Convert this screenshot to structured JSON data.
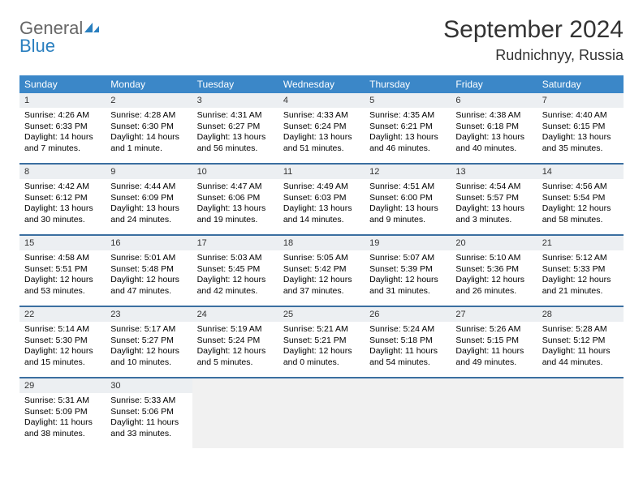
{
  "logo": {
    "text1": "General",
    "text2": "Blue"
  },
  "title": "September 2024",
  "location": "Rudnichnyy, Russia",
  "colors": {
    "header_bg": "#3b87c8",
    "header_fg": "#ffffff",
    "daynum_bg": "#eceff2",
    "week_divider": "#3b6fa0",
    "empty_bg": "#f1f1f1",
    "logo_gray": "#666666",
    "logo_blue": "#2a7fbf"
  },
  "weekdays": [
    "Sunday",
    "Monday",
    "Tuesday",
    "Wednesday",
    "Thursday",
    "Friday",
    "Saturday"
  ],
  "weeks": [
    [
      {
        "n": "1",
        "sr": "Sunrise: 4:26 AM",
        "ss": "Sunset: 6:33 PM",
        "dl": "Daylight: 14 hours and 7 minutes."
      },
      {
        "n": "2",
        "sr": "Sunrise: 4:28 AM",
        "ss": "Sunset: 6:30 PM",
        "dl": "Daylight: 14 hours and 1 minute."
      },
      {
        "n": "3",
        "sr": "Sunrise: 4:31 AM",
        "ss": "Sunset: 6:27 PM",
        "dl": "Daylight: 13 hours and 56 minutes."
      },
      {
        "n": "4",
        "sr": "Sunrise: 4:33 AM",
        "ss": "Sunset: 6:24 PM",
        "dl": "Daylight: 13 hours and 51 minutes."
      },
      {
        "n": "5",
        "sr": "Sunrise: 4:35 AM",
        "ss": "Sunset: 6:21 PM",
        "dl": "Daylight: 13 hours and 46 minutes."
      },
      {
        "n": "6",
        "sr": "Sunrise: 4:38 AM",
        "ss": "Sunset: 6:18 PM",
        "dl": "Daylight: 13 hours and 40 minutes."
      },
      {
        "n": "7",
        "sr": "Sunrise: 4:40 AM",
        "ss": "Sunset: 6:15 PM",
        "dl": "Daylight: 13 hours and 35 minutes."
      }
    ],
    [
      {
        "n": "8",
        "sr": "Sunrise: 4:42 AM",
        "ss": "Sunset: 6:12 PM",
        "dl": "Daylight: 13 hours and 30 minutes."
      },
      {
        "n": "9",
        "sr": "Sunrise: 4:44 AM",
        "ss": "Sunset: 6:09 PM",
        "dl": "Daylight: 13 hours and 24 minutes."
      },
      {
        "n": "10",
        "sr": "Sunrise: 4:47 AM",
        "ss": "Sunset: 6:06 PM",
        "dl": "Daylight: 13 hours and 19 minutes."
      },
      {
        "n": "11",
        "sr": "Sunrise: 4:49 AM",
        "ss": "Sunset: 6:03 PM",
        "dl": "Daylight: 13 hours and 14 minutes."
      },
      {
        "n": "12",
        "sr": "Sunrise: 4:51 AM",
        "ss": "Sunset: 6:00 PM",
        "dl": "Daylight: 13 hours and 9 minutes."
      },
      {
        "n": "13",
        "sr": "Sunrise: 4:54 AM",
        "ss": "Sunset: 5:57 PM",
        "dl": "Daylight: 13 hours and 3 minutes."
      },
      {
        "n": "14",
        "sr": "Sunrise: 4:56 AM",
        "ss": "Sunset: 5:54 PM",
        "dl": "Daylight: 12 hours and 58 minutes."
      }
    ],
    [
      {
        "n": "15",
        "sr": "Sunrise: 4:58 AM",
        "ss": "Sunset: 5:51 PM",
        "dl": "Daylight: 12 hours and 53 minutes."
      },
      {
        "n": "16",
        "sr": "Sunrise: 5:01 AM",
        "ss": "Sunset: 5:48 PM",
        "dl": "Daylight: 12 hours and 47 minutes."
      },
      {
        "n": "17",
        "sr": "Sunrise: 5:03 AM",
        "ss": "Sunset: 5:45 PM",
        "dl": "Daylight: 12 hours and 42 minutes."
      },
      {
        "n": "18",
        "sr": "Sunrise: 5:05 AM",
        "ss": "Sunset: 5:42 PM",
        "dl": "Daylight: 12 hours and 37 minutes."
      },
      {
        "n": "19",
        "sr": "Sunrise: 5:07 AM",
        "ss": "Sunset: 5:39 PM",
        "dl": "Daylight: 12 hours and 31 minutes."
      },
      {
        "n": "20",
        "sr": "Sunrise: 5:10 AM",
        "ss": "Sunset: 5:36 PM",
        "dl": "Daylight: 12 hours and 26 minutes."
      },
      {
        "n": "21",
        "sr": "Sunrise: 5:12 AM",
        "ss": "Sunset: 5:33 PM",
        "dl": "Daylight: 12 hours and 21 minutes."
      }
    ],
    [
      {
        "n": "22",
        "sr": "Sunrise: 5:14 AM",
        "ss": "Sunset: 5:30 PM",
        "dl": "Daylight: 12 hours and 15 minutes."
      },
      {
        "n": "23",
        "sr": "Sunrise: 5:17 AM",
        "ss": "Sunset: 5:27 PM",
        "dl": "Daylight: 12 hours and 10 minutes."
      },
      {
        "n": "24",
        "sr": "Sunrise: 5:19 AM",
        "ss": "Sunset: 5:24 PM",
        "dl": "Daylight: 12 hours and 5 minutes."
      },
      {
        "n": "25",
        "sr": "Sunrise: 5:21 AM",
        "ss": "Sunset: 5:21 PM",
        "dl": "Daylight: 12 hours and 0 minutes."
      },
      {
        "n": "26",
        "sr": "Sunrise: 5:24 AM",
        "ss": "Sunset: 5:18 PM",
        "dl": "Daylight: 11 hours and 54 minutes."
      },
      {
        "n": "27",
        "sr": "Sunrise: 5:26 AM",
        "ss": "Sunset: 5:15 PM",
        "dl": "Daylight: 11 hours and 49 minutes."
      },
      {
        "n": "28",
        "sr": "Sunrise: 5:28 AM",
        "ss": "Sunset: 5:12 PM",
        "dl": "Daylight: 11 hours and 44 minutes."
      }
    ],
    [
      {
        "n": "29",
        "sr": "Sunrise: 5:31 AM",
        "ss": "Sunset: 5:09 PM",
        "dl": "Daylight: 11 hours and 38 minutes."
      },
      {
        "n": "30",
        "sr": "Sunrise: 5:33 AM",
        "ss": "Sunset: 5:06 PM",
        "dl": "Daylight: 11 hours and 33 minutes."
      },
      {
        "empty": true
      },
      {
        "empty": true
      },
      {
        "empty": true
      },
      {
        "empty": true
      },
      {
        "empty": true
      }
    ]
  ]
}
